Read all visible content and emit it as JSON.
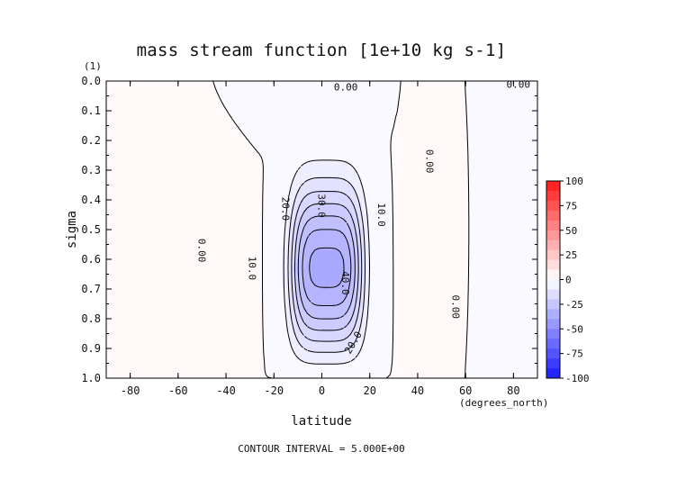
{
  "chart_data": {
    "type": "heatmap",
    "title": "mass stream function [1e+10 kg s-1]",
    "xlabel": "latitude",
    "x_units": "(degrees_north)",
    "ylabel": "sigma",
    "y_units": "(1)",
    "xlim": [
      -90,
      90
    ],
    "ylim": [
      0.0,
      1.0
    ],
    "y_inverted": true,
    "x_ticks": [
      "-80",
      "-60",
      "-40",
      "-20",
      "0",
      "20",
      "40",
      "60",
      "80"
    ],
    "y_ticks": [
      "0.0",
      "0.1",
      "0.2",
      "0.3",
      "0.4",
      "0.5",
      "0.6",
      "0.7",
      "0.8",
      "0.9",
      "1.0"
    ],
    "grid": false,
    "colorbar": {
      "position": "right",
      "levels": [
        "100",
        "75",
        "50",
        "25",
        "0",
        "-25",
        "-50",
        "-75",
        "-100"
      ],
      "colors": {
        "max_positive": "#ff1a1a",
        "zero": "#ffffff",
        "max_negative": "#1a1aff"
      }
    },
    "contour_interval": 5.0,
    "contour_interval_text": "CONTOUR INTERVAL = 5.000E+00",
    "features": [
      {
        "kind": "minimum",
        "lat": 5,
        "sigma": 0.78,
        "value": -45
      },
      {
        "kind": "positive-cell",
        "lat": -55,
        "sigma": 0.65,
        "value": 4
      },
      {
        "kind": "positive-cell",
        "lat": 50,
        "sigma": 0.5,
        "value": 2
      }
    ],
    "contour_labels": [
      {
        "text": "0.00",
        "lat": 10,
        "sigma": 0.02
      },
      {
        "text": "0.00",
        "lat": 82,
        "sigma": 0.01
      },
      {
        "text": "0.00",
        "lat": -50,
        "sigma": 0.57
      },
      {
        "text": "0.00",
        "lat": 45,
        "sigma": 0.27
      },
      {
        "text": "0.00",
        "lat": 56,
        "sigma": 0.76
      },
      {
        "text": "10.0",
        "lat": 25,
        "sigma": 0.45
      },
      {
        "text": "10.0",
        "lat": -29,
        "sigma": 0.63
      },
      {
        "text": "20.0",
        "lat": -15,
        "sigma": 0.43
      },
      {
        "text": "30.0",
        "lat": 0,
        "sigma": 0.42
      },
      {
        "text": "40.0",
        "lat": 10,
        "sigma": 0.68
      },
      {
        "text": "20.0",
        "lat": 13,
        "sigma": 0.88
      }
    ]
  }
}
